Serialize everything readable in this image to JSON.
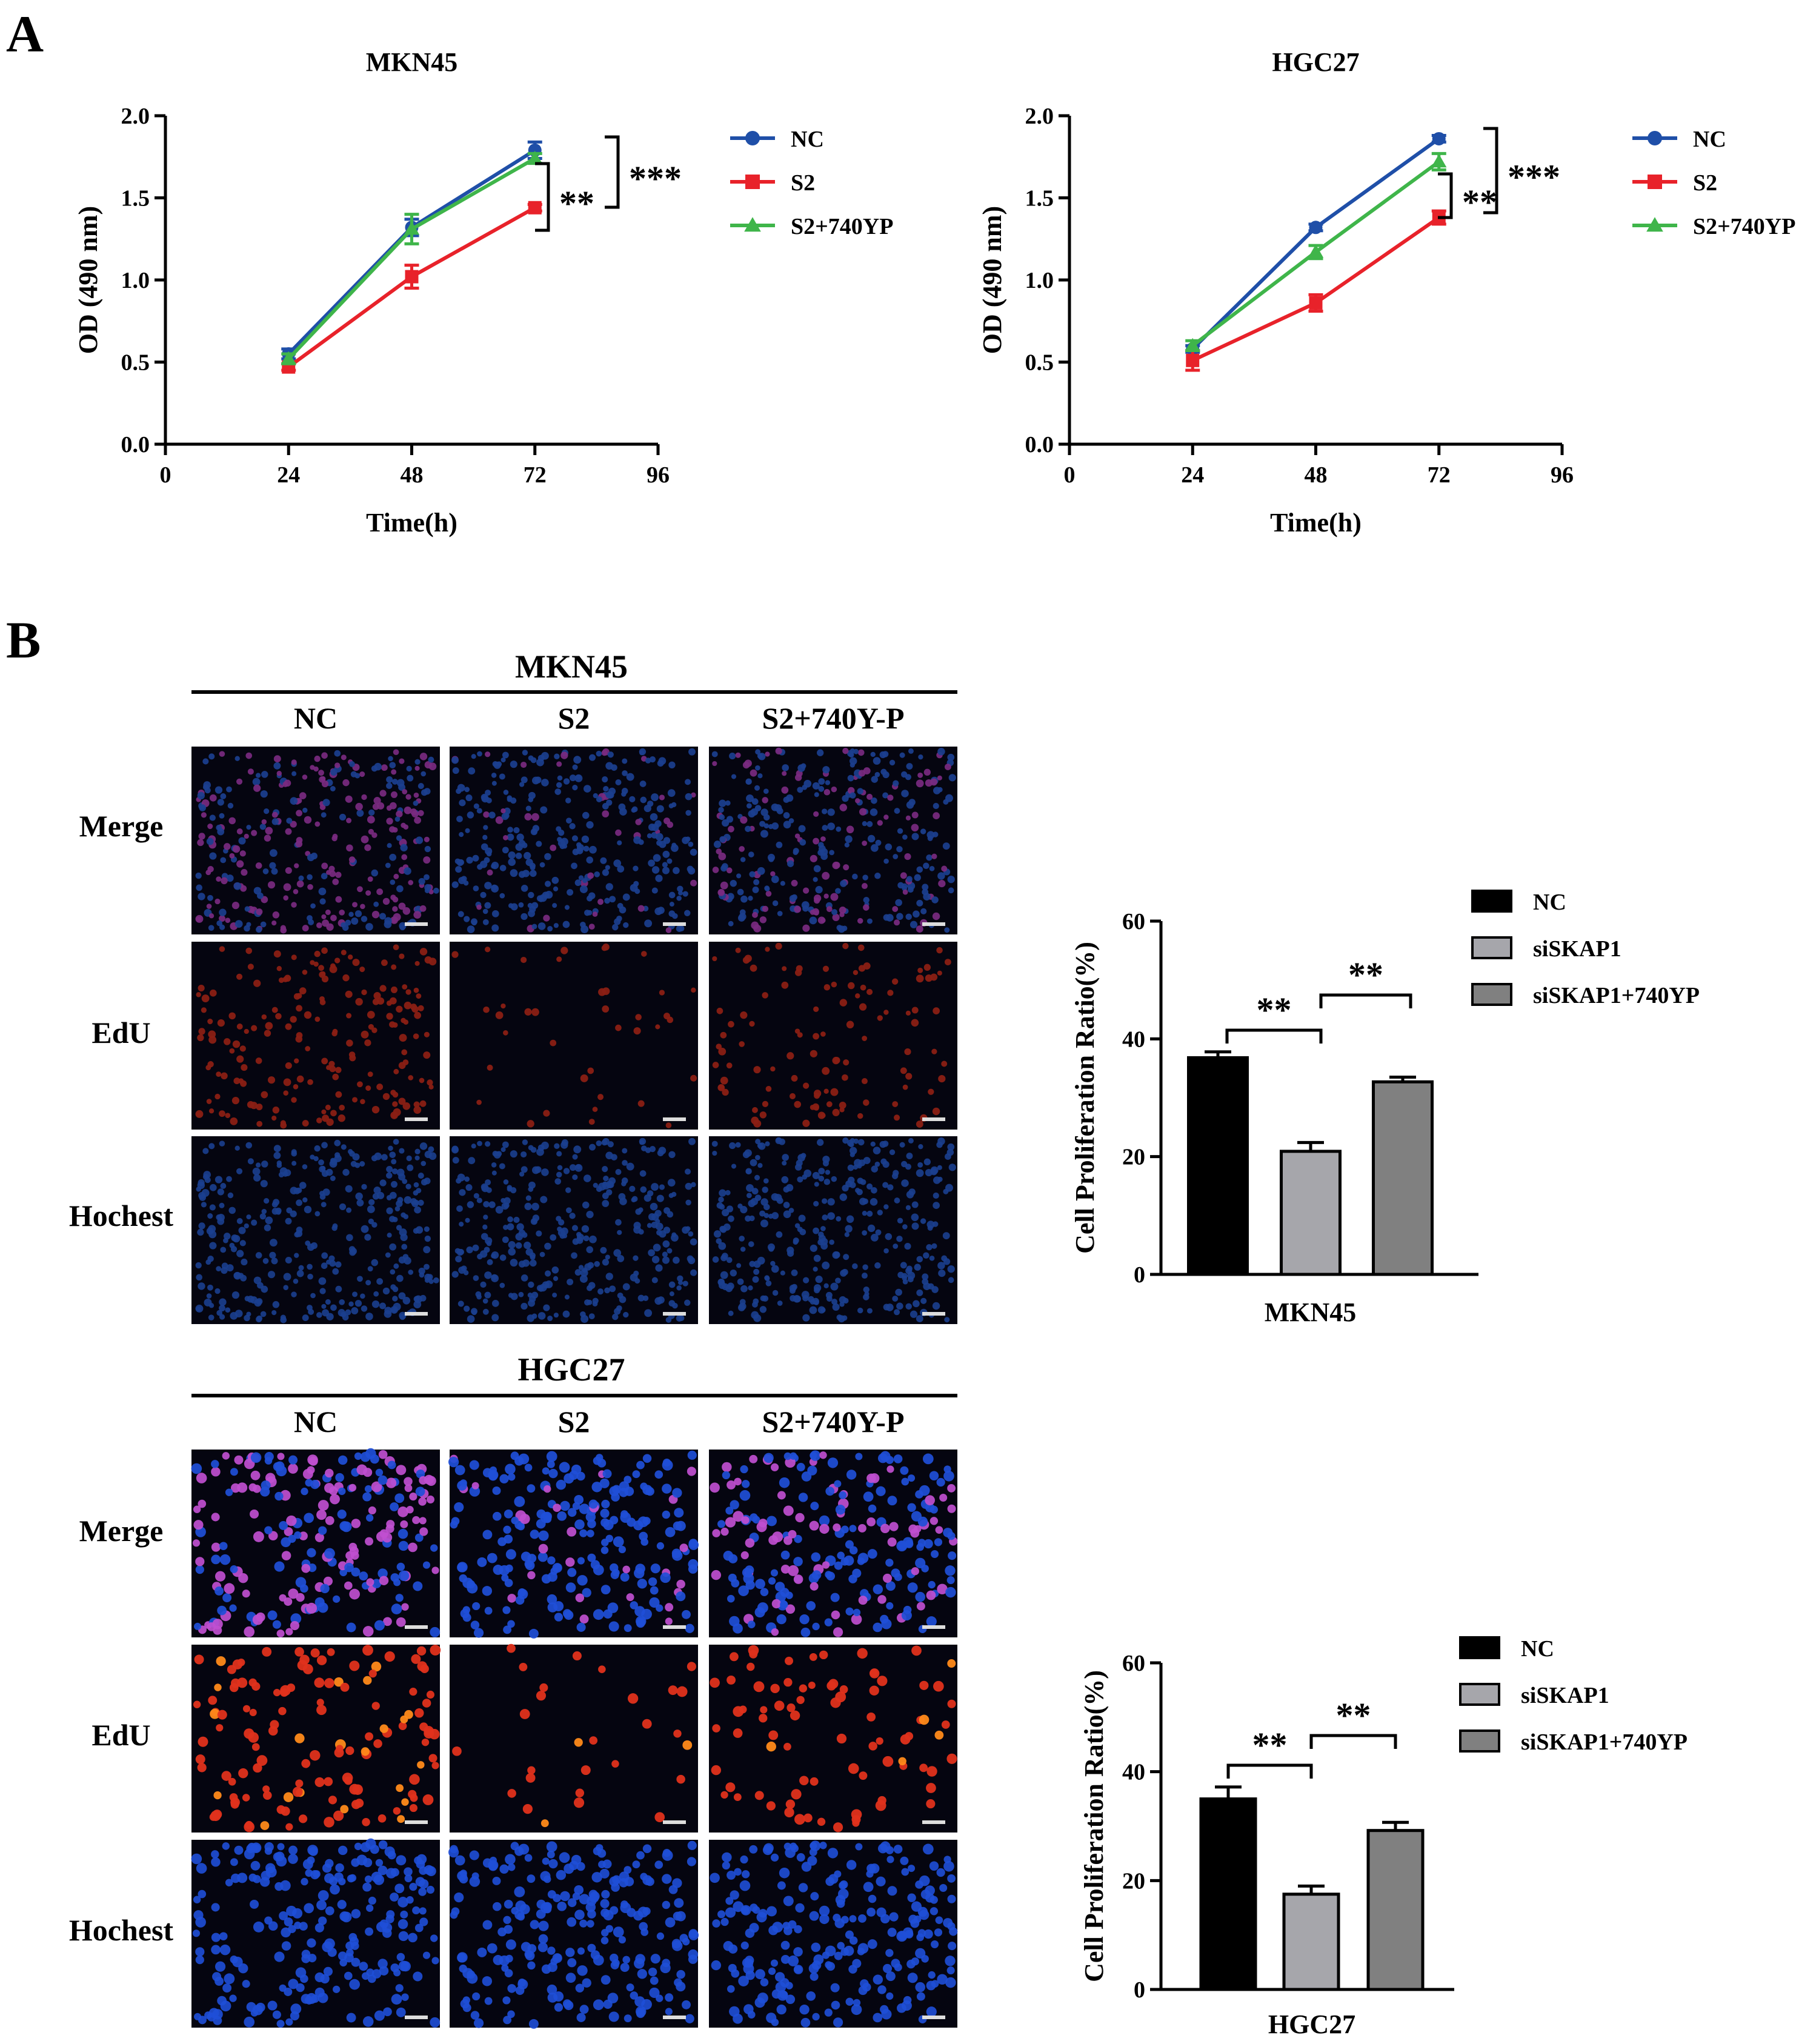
{
  "panel_labels": {
    "a": "A",
    "b": "B"
  },
  "chart_data": [
    {
      "type": "line",
      "title": "MKN45",
      "xlabel": "Time(h)",
      "ylabel": "OD (490 nm)",
      "xlim": [
        0,
        96
      ],
      "ylim": [
        0,
        2.0
      ],
      "x_ticks": [
        "0",
        "24",
        "48",
        "72",
        "96"
      ],
      "y_ticks": [
        "0.0",
        "0.5",
        "1.0",
        "1.5",
        "2.0"
      ],
      "x": [
        24,
        48,
        72
      ],
      "series": [
        {
          "name": "NC",
          "color": "#1f4fa8",
          "marker": "circle",
          "values": [
            0.55,
            1.32,
            1.79
          ],
          "errors": [
            0.03,
            0.05,
            0.05
          ]
        },
        {
          "name": "S2",
          "color": "#e8222a",
          "marker": "square",
          "values": [
            0.47,
            1.02,
            1.44
          ],
          "errors": [
            0.02,
            0.07,
            0.02
          ]
        },
        {
          "name": "S2+740YP",
          "color": "#3fb54a",
          "marker": "triangle",
          "values": [
            0.52,
            1.31,
            1.74
          ],
          "errors": [
            0.03,
            0.09,
            0.03
          ]
        }
      ],
      "significance": [
        "**",
        "***"
      ]
    },
    {
      "type": "line",
      "title": "HGC27",
      "xlabel": "Time(h)",
      "ylabel": "OD (490 nm)",
      "xlim": [
        0,
        96
      ],
      "ylim": [
        0,
        2.0
      ],
      "x_ticks": [
        "0",
        "24",
        "48",
        "72",
        "96"
      ],
      "y_ticks": [
        "0.0",
        "0.5",
        "1.0",
        "1.5",
        "2.0"
      ],
      "x": [
        24,
        48,
        72
      ],
      "series": [
        {
          "name": "NC",
          "color": "#1f4fa8",
          "marker": "circle",
          "values": [
            0.58,
            1.32,
            1.86
          ],
          "errors": [
            0.02,
            0.02,
            0.02
          ]
        },
        {
          "name": "S2",
          "color": "#e8222a",
          "marker": "square",
          "values": [
            0.51,
            0.86,
            1.38
          ],
          "errors": [
            0.06,
            0.05,
            0.04
          ]
        },
        {
          "name": "S2+740YP",
          "color": "#3fb54a",
          "marker": "triangle",
          "values": [
            0.6,
            1.17,
            1.72
          ],
          "errors": [
            0.03,
            0.04,
            0.05
          ]
        }
      ],
      "significance": [
        "**",
        "***"
      ]
    },
    {
      "type": "bar",
      "xlabel": "MKN45",
      "ylabel": "Cell Proliferation Ratio(%)",
      "ylim": [
        0,
        60
      ],
      "y_ticks": [
        "0",
        "20",
        "40",
        "60"
      ],
      "categories": [
        "NC",
        "siSKAP1",
        "siSKAP1+740YP"
      ],
      "values": [
        36.8,
        20.9,
        32.7
      ],
      "errors": [
        1.0,
        1.5,
        0.8
      ],
      "colors": [
        "#000000",
        "#a6a6ab",
        "#808080"
      ],
      "significance": [
        "**",
        "**"
      ]
    },
    {
      "type": "bar",
      "xlabel": "HGC27",
      "ylabel": "Cell Proliferation Ratio(%)",
      "ylim": [
        0,
        60
      ],
      "y_ticks": [
        "0",
        "20",
        "40",
        "60"
      ],
      "categories": [
        "NC",
        "siSKAP1",
        "siSKAP1+740YP"
      ],
      "values": [
        35.0,
        17.5,
        29.2
      ],
      "errors": [
        2.2,
        1.5,
        1.5
      ],
      "colors": [
        "#000000",
        "#a6a6ab",
        "#808080"
      ],
      "significance": [
        "**",
        "**"
      ]
    }
  ],
  "micrographs": [
    {
      "title": "MKN45",
      "columns": [
        "NC",
        "S2",
        "S2+740Y-P"
      ],
      "rows": [
        "Merge",
        "EdU",
        "Hochest"
      ],
      "edu_density": [
        "high",
        "low",
        "medium"
      ]
    },
    {
      "title": "HGC27",
      "columns": [
        "NC",
        "S2",
        "S2+740Y-P"
      ],
      "rows": [
        "Merge",
        "EdU",
        "Hochest"
      ],
      "edu_density": [
        "high",
        "low",
        "medium"
      ]
    }
  ]
}
